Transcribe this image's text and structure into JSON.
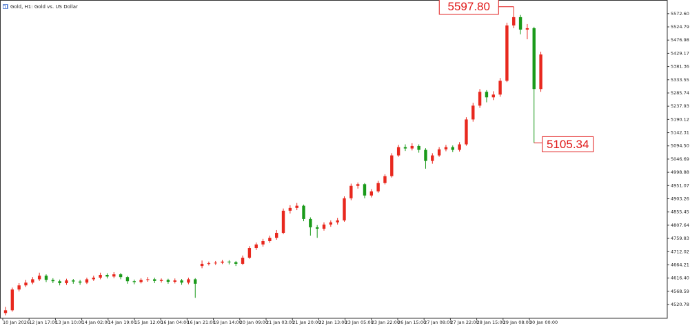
{
  "chart_data": {
    "type": "candlestick",
    "title": "Gold, H1: Gold vs. US Dollar",
    "up_color": "#e8281e",
    "down_color": "#1a9a1a",
    "open": [
      4490,
      4500,
      4575,
      4590,
      4600,
      4612,
      4625,
      4610,
      4605,
      4598,
      4608,
      4604,
      4600,
      4612,
      4618,
      4628,
      4622,
      4630,
      4620,
      4605,
      4602,
      4610,
      4612,
      4606,
      4610,
      4603,
      4608,
      4600,
      4612,
      4660,
      4668,
      4670,
      4672,
      4676,
      4674,
      4668,
      4690,
      4725,
      4738,
      4750,
      4762,
      4780,
      4860,
      4870,
      4878,
      4830,
      4800,
      4795,
      4810,
      4818,
      4825,
      4905,
      4950,
      4956,
      4915,
      4930,
      4960,
      4985,
      5060,
      5090,
      5085,
      5094,
      5080,
      5040,
      5060,
      5082,
      5090,
      5080,
      5100,
      5190,
      5240,
      5290,
      5270,
      5280,
      5330,
      5530,
      5560,
      5515,
      5520,
      5300
    ],
    "high": [
      4512,
      4582,
      4598,
      4610,
      4620,
      4636,
      4630,
      4616,
      4611,
      4614,
      4613,
      4610,
      4618,
      4625,
      4636,
      4634,
      4638,
      4635,
      4624,
      4611,
      4616,
      4620,
      4618,
      4615,
      4614,
      4615,
      4613,
      4618,
      4616,
      4680,
      4676,
      4678,
      4682,
      4681,
      4678,
      4698,
      4732,
      4745,
      4758,
      4770,
      4790,
      4868,
      4880,
      4888,
      4882,
      4836,
      4808,
      4818,
      4825,
      4834,
      4912,
      4958,
      4962,
      4960,
      4938,
      4968,
      4992,
      5068,
      5098,
      5100,
      5104,
      5100,
      5086,
      5068,
      5090,
      5098,
      5096,
      5108,
      5198,
      5250,
      5300,
      5296,
      5292,
      5340,
      5540,
      5597.8,
      5568,
      5535,
      5525,
      5435
    ],
    "low": [
      4482,
      4495,
      4568,
      4584,
      4594,
      4606,
      4602,
      4598,
      4590,
      4592,
      4596,
      4592,
      4595,
      4606,
      4612,
      4615,
      4616,
      4612,
      4596,
      4594,
      4597,
      4603,
      4598,
      4600,
      4596,
      4597,
      4592,
      4594,
      4545,
      4652,
      4662,
      4664,
      4667,
      4666,
      4660,
      4664,
      4686,
      4718,
      4730,
      4744,
      4755,
      4775,
      4850,
      4862,
      4822,
      4770,
      4762,
      4788,
      4802,
      4810,
      4820,
      4898,
      4940,
      4905,
      4908,
      4925,
      4955,
      4980,
      5055,
      5076,
      5078,
      5070,
      5012,
      5030,
      5055,
      5075,
      5072,
      5074,
      5095,
      5182,
      5232,
      5252,
      5260,
      5272,
      5325,
      5520,
      5498,
      5480,
      5105.34,
      5290
    ],
    "close": [
      4500,
      4575,
      4590,
      4600,
      4612,
      4625,
      4610,
      4605,
      4598,
      4608,
      4604,
      4600,
      4612,
      4618,
      4628,
      4622,
      4630,
      4620,
      4605,
      4602,
      4610,
      4612,
      4606,
      4610,
      4603,
      4608,
      4600,
      4612,
      4596,
      4668,
      4670,
      4672,
      4676,
      4674,
      4668,
      4690,
      4725,
      4738,
      4750,
      4762,
      4780,
      4860,
      4870,
      4878,
      4830,
      4800,
      4795,
      4810,
      4818,
      4825,
      4905,
      4950,
      4956,
      4915,
      4930,
      4960,
      4985,
      5060,
      5090,
      5085,
      5094,
      5080,
      5040,
      5060,
      5082,
      5090,
      5080,
      5100,
      5190,
      5240,
      5290,
      5270,
      5280,
      5330,
      5530,
      5560,
      5515,
      5520,
      5300,
      5425
    ],
    "x_labels": [
      "10 Jan 2026",
      "12 Jan 17:00",
      "13 Jan 10:00",
      "14 Jan 02:00",
      "14 Jan 19:00",
      "15 Jan 12:00",
      "16 Jan 04:00",
      "16 Jan 21:00",
      "19 Jan 14:00",
      "20 Jan 09:00",
      "21 Jan 03:00",
      "21 Jan 20:00",
      "22 Jan 13:00",
      "23 Jan 05:00",
      "23 Jan 22:00",
      "26 Jan 15:00",
      "27 Jan 08:00",
      "27 Jan 22:00",
      "28 Jan 15:00",
      "29 Jan 08:00",
      "30 Jan 00:00"
    ],
    "ylim": [
      4471,
      5622
    ],
    "yticks": [
      {
        "value": 5572.6,
        "label": "5572.60"
      },
      5524.79,
      5476.98,
      5429.17,
      5381.36,
      5333.55,
      5285.74,
      5237.93,
      5190.12,
      5142.31,
      {
        "value": 5094.5,
        "label": "5094.50"
      },
      5046.69,
      4998.88,
      4951.07,
      4903.26,
      4855.45,
      4807.64,
      4759.83,
      4712.02,
      4664.21,
      {
        "value": 4616.4,
        "label": "4616.40"
      },
      4568.59,
      4520.78
    ],
    "annotations": [
      {
        "label": "5597.80",
        "value": 5597.8
      },
      {
        "label": "5105.34",
        "value": 5105.34
      }
    ]
  }
}
